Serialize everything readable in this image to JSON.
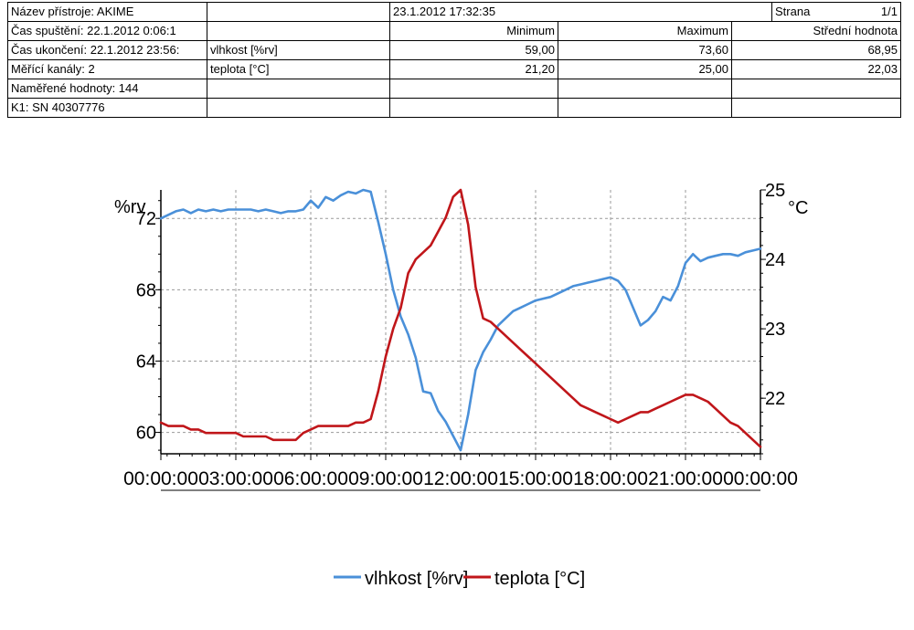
{
  "header": {
    "device_name": "Název přístroje: AKIME",
    "start_time": "Čas spuštění: 22.1.2012 0:06:1",
    "end_time": "Čas ukončení: 22.1.2012 23:56:",
    "channels": "Měřící kanály: 2",
    "measured_values": "Naměřené hodnoty: 144",
    "k1": "K1: SN 40307776",
    "print_date": "23.1.2012 17:32:35",
    "page_label": "Strana",
    "page_value": "1/1",
    "col_min": "Minimum",
    "col_max": "Maximum",
    "col_mean": "Střední hodnota",
    "rows": [
      {
        "name": "vlhkost [%rv]",
        "min": "59,00",
        "max": "73,60",
        "mean": "68,95"
      },
      {
        "name": "teplota [°C]",
        "min": "21,20",
        "max": "25,00",
        "mean": "22,03"
      }
    ]
  },
  "chart_data": {
    "type": "line",
    "y_left_label": "%rv",
    "y_right_label": "°C",
    "x_ticks": [
      "00:00:00",
      "03:00:00",
      "06:00:00",
      "09:00:00",
      "12:00:00",
      "15:00:00",
      "18:00:00",
      "21:00:00",
      "00:00:00"
    ],
    "x_range_hours": [
      0,
      24
    ],
    "y_left_ticks": [
      "72",
      "68",
      "64",
      "60"
    ],
    "y_left_range": [
      58.8,
      73.6
    ],
    "y_right_ticks": [
      "25",
      "24",
      "23",
      "22"
    ],
    "y_right_range": [
      21.2,
      25.0
    ],
    "grid": true,
    "legend_position": "bottom-center",
    "series": [
      {
        "name": "vlhkost [%rv]",
        "axis": "left",
        "color": "#4a90d9",
        "x": [
          0,
          0.3,
          0.6,
          0.9,
          1.2,
          1.5,
          1.8,
          2.1,
          2.4,
          2.7,
          3.0,
          3.3,
          3.6,
          3.9,
          4.2,
          4.5,
          4.8,
          5.1,
          5.4,
          5.7,
          6.0,
          6.3,
          6.6,
          6.9,
          7.2,
          7.5,
          7.8,
          8.1,
          8.4,
          8.7,
          9.0,
          9.3,
          9.6,
          9.9,
          10.2,
          10.5,
          10.8,
          11.1,
          11.4,
          11.7,
          12.0,
          12.3,
          12.6,
          12.9,
          13.2,
          13.5,
          13.8,
          14.1,
          14.4,
          14.7,
          15.0,
          15.3,
          15.6,
          15.9,
          16.2,
          16.5,
          16.8,
          17.1,
          17.4,
          17.7,
          18.0,
          18.3,
          18.6,
          18.9,
          19.2,
          19.5,
          19.8,
          20.1,
          20.4,
          20.7,
          21.0,
          21.3,
          21.6,
          21.9,
          22.2,
          22.5,
          22.8,
          23.1,
          23.4,
          23.7,
          24.0
        ],
        "y": [
          72.0,
          72.2,
          72.4,
          72.5,
          72.3,
          72.5,
          72.4,
          72.5,
          72.4,
          72.5,
          72.5,
          72.5,
          72.5,
          72.4,
          72.5,
          72.4,
          72.3,
          72.4,
          72.4,
          72.5,
          73.0,
          72.6,
          73.2,
          73.0,
          73.3,
          73.5,
          73.4,
          73.6,
          73.5,
          71.8,
          70.0,
          68.0,
          66.5,
          65.5,
          64.2,
          62.3,
          62.2,
          61.2,
          60.6,
          59.8,
          59.0,
          61.0,
          63.5,
          64.5,
          65.2,
          66.0,
          66.4,
          66.8,
          67.0,
          67.2,
          67.4,
          67.5,
          67.6,
          67.8,
          68.0,
          68.2,
          68.3,
          68.4,
          68.5,
          68.6,
          68.7,
          68.5,
          68.0,
          67.0,
          66.0,
          66.3,
          66.8,
          67.6,
          67.4,
          68.2,
          69.5,
          70.0,
          69.6,
          69.8,
          69.9,
          70.0,
          70.0,
          69.9,
          70.1,
          70.2,
          70.3
        ]
      },
      {
        "name": "teplota [°C]",
        "axis": "right",
        "color": "#c0161a",
        "x": [
          0,
          0.3,
          0.6,
          0.9,
          1.2,
          1.5,
          1.8,
          2.1,
          2.4,
          2.7,
          3.0,
          3.3,
          3.6,
          3.9,
          4.2,
          4.5,
          4.8,
          5.1,
          5.4,
          5.7,
          6.0,
          6.3,
          6.6,
          6.9,
          7.2,
          7.5,
          7.8,
          8.1,
          8.4,
          8.7,
          9.0,
          9.3,
          9.6,
          9.9,
          10.2,
          10.5,
          10.8,
          11.1,
          11.4,
          11.7,
          12.0,
          12.3,
          12.6,
          12.9,
          13.2,
          13.5,
          13.8,
          14.1,
          14.4,
          14.7,
          15.0,
          15.3,
          15.6,
          15.9,
          16.2,
          16.5,
          16.8,
          17.1,
          17.4,
          17.7,
          18.0,
          18.3,
          18.6,
          18.9,
          19.2,
          19.5,
          19.8,
          20.1,
          20.4,
          20.7,
          21.0,
          21.3,
          21.6,
          21.9,
          22.2,
          22.5,
          22.8,
          23.1,
          23.4,
          23.7,
          24.0
        ],
        "y": [
          21.65,
          21.6,
          21.6,
          21.6,
          21.55,
          21.55,
          21.5,
          21.5,
          21.5,
          21.5,
          21.5,
          21.45,
          21.45,
          21.45,
          21.45,
          21.4,
          21.4,
          21.4,
          21.4,
          21.5,
          21.55,
          21.6,
          21.6,
          21.6,
          21.6,
          21.6,
          21.65,
          21.65,
          21.7,
          22.1,
          22.6,
          23.0,
          23.3,
          23.8,
          24.0,
          24.1,
          24.2,
          24.4,
          24.6,
          24.9,
          25.0,
          24.5,
          23.6,
          23.15,
          23.1,
          23.0,
          22.9,
          22.8,
          22.7,
          22.6,
          22.5,
          22.4,
          22.3,
          22.2,
          22.1,
          22.0,
          21.9,
          21.85,
          21.8,
          21.75,
          21.7,
          21.65,
          21.7,
          21.75,
          21.8,
          21.8,
          21.85,
          21.9,
          21.95,
          22.0,
          22.05,
          22.05,
          22.0,
          21.95,
          21.85,
          21.75,
          21.65,
          21.6,
          21.5,
          21.4,
          21.3
        ]
      }
    ]
  }
}
